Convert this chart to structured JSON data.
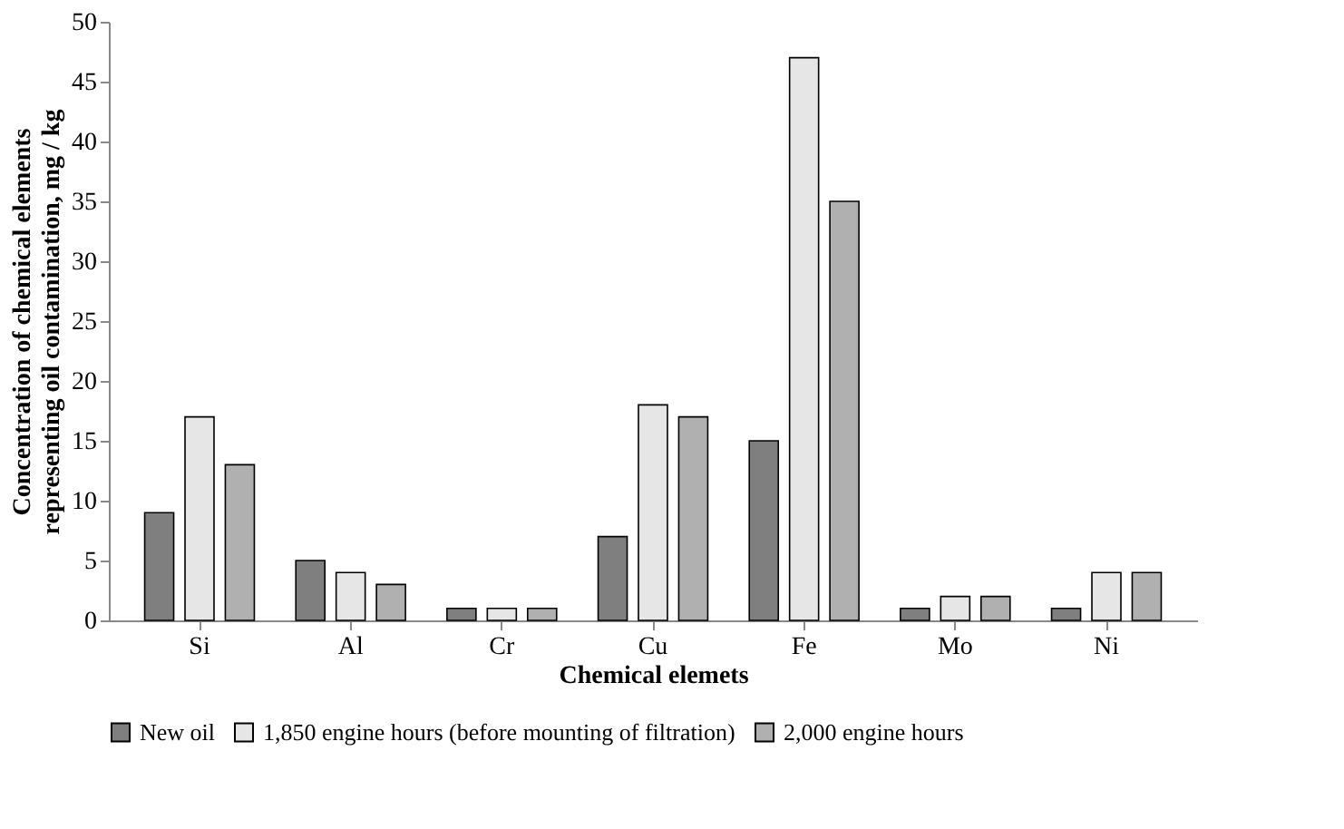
{
  "chart_data": {
    "type": "bar",
    "xlabel": "Chemical elemets",
    "ylabel": "Concentration of chemical elements representing oil contamination, mg / kg",
    "categories": [
      "Si",
      "Al",
      "Cr",
      "Cu",
      "Fe",
      "Mo",
      "Ni"
    ],
    "series": [
      {
        "name": "New oil",
        "color": "#7f7f7f",
        "values": [
          9,
          5,
          1,
          7,
          15,
          1,
          1
        ]
      },
      {
        "name": "1,850 engine hours (before mounting of filtration)",
        "color": "#e6e6e6",
        "values": [
          17,
          4,
          1,
          18,
          47,
          2,
          4
        ]
      },
      {
        "name": "2,000 engine hours",
        "color": "#b0b0b0",
        "values": [
          13,
          3,
          1,
          17,
          35,
          2,
          4
        ]
      }
    ],
    "ylim": [
      0,
      50
    ],
    "yticks": [
      0,
      5,
      10,
      15,
      20,
      25,
      30,
      35,
      40,
      45,
      50
    ],
    "grid": false,
    "legend": "bottom"
  }
}
